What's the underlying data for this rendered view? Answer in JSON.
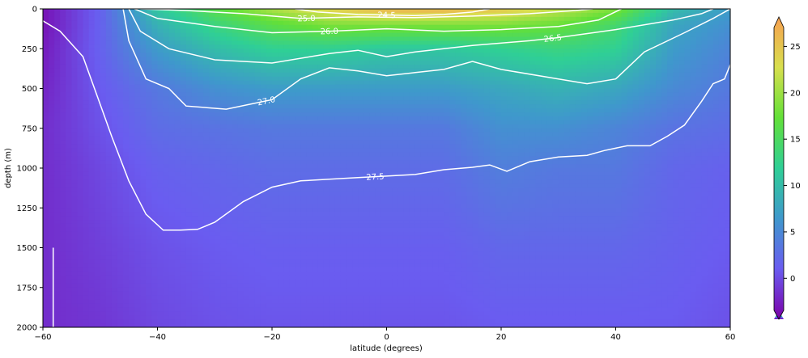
{
  "chart_data": {
    "type": "heatmap",
    "xlabel": "latitude (degrees)",
    "ylabel": "depth (m)",
    "xlim": [
      -60,
      60
    ],
    "ylim": [
      2000,
      0
    ],
    "xticks": [
      -60,
      -40,
      -20,
      0,
      20,
      40,
      60
    ],
    "yticks": [
      0,
      250,
      500,
      750,
      1000,
      1250,
      1500,
      1750,
      2000
    ],
    "colorbar": {
      "range": [
        -2.5,
        28
      ],
      "ticks": [
        0,
        5,
        10,
        15,
        20,
        25
      ],
      "colormap_stops": [
        "#7b00a8",
        "#6a5cf0",
        "#3f98cc",
        "#2fcf96",
        "#63e038",
        "#d8df4e",
        "#f7a050"
      ]
    },
    "field_estimate": {
      "lat": [
        -60,
        -50,
        -40,
        -30,
        -20,
        -10,
        0,
        10,
        20,
        30,
        40,
        50,
        60
      ],
      "depth": [
        0,
        100,
        250,
        500,
        750,
        1000,
        1500,
        2000
      ],
      "value_columns": [
        [
          -1.5,
          -1.5,
          -1.0,
          -0.5,
          0.0,
          0.0,
          0.0,
          0.0
        ],
        [
          3.0,
          3.0,
          3.0,
          2.5,
          2.0,
          1.5,
          1.0,
          0.5
        ],
        [
          12.0,
          10.0,
          8.0,
          5.0,
          4.0,
          3.0,
          2.0,
          1.5
        ],
        [
          17.0,
          14.0,
          11.0,
          7.0,
          4.5,
          3.5,
          2.5,
          2.0
        ],
        [
          21.0,
          17.0,
          13.0,
          8.0,
          5.0,
          4.0,
          2.8,
          2.2
        ],
        [
          24.0,
          19.0,
          13.0,
          8.0,
          5.0,
          4.0,
          2.8,
          2.2
        ],
        [
          26.5,
          19.0,
          12.0,
          8.0,
          5.0,
          4.0,
          2.8,
          2.2
        ],
        [
          26.5,
          19.0,
          12.0,
          8.0,
          5.0,
          4.0,
          2.8,
          2.2
        ],
        [
          25.0,
          19.0,
          13.0,
          9.0,
          7.0,
          5.5,
          3.5,
          2.5
        ],
        [
          22.0,
          18.0,
          14.0,
          10.0,
          7.0,
          5.0,
          3.5,
          2.5
        ],
        [
          19.0,
          15.0,
          13.0,
          9.0,
          6.0,
          5.0,
          3.5,
          2.5
        ],
        [
          11.0,
          9.0,
          8.0,
          6.5,
          4.5,
          3.5,
          3.0,
          2.5
        ],
        [
          8.0,
          7.0,
          6.0,
          5.0,
          4.0,
          3.0,
          2.5,
          2.0
        ]
      ]
    },
    "contours": [
      {
        "label": "24.5",
        "label_lat": 0,
        "points": [
          [
            -16,
            0
          ],
          [
            -12,
            20
          ],
          [
            -5,
            35
          ],
          [
            0,
            38
          ],
          [
            5,
            42
          ],
          [
            10,
            35
          ],
          [
            15,
            20
          ],
          [
            18,
            0
          ]
        ]
      },
      {
        "label": "25.0",
        "label_lat": -14,
        "points": [
          [
            -43,
            0
          ],
          [
            -35,
            10
          ],
          [
            -25,
            30
          ],
          [
            -15,
            60
          ],
          [
            -5,
            50
          ],
          [
            5,
            55
          ],
          [
            15,
            45
          ],
          [
            25,
            30
          ],
          [
            33,
            10
          ],
          [
            36,
            0
          ]
        ]
      },
      {
        "label": "26.0",
        "label_lat": -10,
        "points": [
          [
            -44,
            0
          ],
          [
            -40,
            60
          ],
          [
            -30,
            110
          ],
          [
            -20,
            150
          ],
          [
            -10,
            140
          ],
          [
            0,
            125
          ],
          [
            10,
            140
          ],
          [
            20,
            130
          ],
          [
            30,
            110
          ],
          [
            37,
            70
          ],
          [
            41,
            0
          ]
        ]
      },
      {
        "label": "26.5",
        "label_lat": 29,
        "points": [
          [
            -45,
            0
          ],
          [
            -43,
            140
          ],
          [
            -38,
            250
          ],
          [
            -30,
            320
          ],
          [
            -20,
            340
          ],
          [
            -10,
            280
          ],
          [
            -5,
            260
          ],
          [
            0,
            300
          ],
          [
            5,
            270
          ],
          [
            15,
            230
          ],
          [
            25,
            200
          ],
          [
            30,
            180
          ],
          [
            40,
            130
          ],
          [
            50,
            70
          ],
          [
            55,
            30
          ],
          [
            57,
            0
          ]
        ]
      },
      {
        "label": "27.0",
        "label_lat": -21,
        "points": [
          [
            -46,
            0
          ],
          [
            -45,
            200
          ],
          [
            -42,
            440
          ],
          [
            -38,
            500
          ],
          [
            -35,
            610
          ],
          [
            -28,
            630
          ],
          [
            -20,
            570
          ],
          [
            -15,
            440
          ],
          [
            -10,
            370
          ],
          [
            -5,
            390
          ],
          [
            0,
            420
          ],
          [
            5,
            400
          ],
          [
            10,
            380
          ],
          [
            15,
            330
          ],
          [
            20,
            380
          ],
          [
            30,
            440
          ],
          [
            35,
            470
          ],
          [
            40,
            440
          ],
          [
            45,
            270
          ],
          [
            52,
            150
          ],
          [
            57,
            60
          ],
          [
            60,
            0
          ]
        ]
      },
      {
        "label": "27.5",
        "label_lat": -2,
        "points": [
          [
            -60,
            75
          ],
          [
            -57,
            140
          ],
          [
            -53,
            300
          ],
          [
            -50,
            600
          ],
          [
            -48,
            800
          ],
          [
            -45,
            1080
          ],
          [
            -42,
            1290
          ],
          [
            -39,
            1390
          ],
          [
            -36,
            1390
          ],
          [
            -33,
            1385
          ],
          [
            -30,
            1340
          ],
          [
            -25,
            1210
          ],
          [
            -20,
            1120
          ],
          [
            -15,
            1080
          ],
          [
            -10,
            1070
          ],
          [
            -5,
            1060
          ],
          [
            0,
            1050
          ],
          [
            5,
            1040
          ],
          [
            10,
            1010
          ],
          [
            15,
            995
          ],
          [
            18,
            980
          ],
          [
            21,
            1020
          ],
          [
            25,
            960
          ],
          [
            30,
            930
          ],
          [
            35,
            920
          ],
          [
            38,
            890
          ],
          [
            42,
            860
          ],
          [
            46,
            860
          ],
          [
            49,
            800
          ],
          [
            52,
            730
          ],
          [
            55,
            580
          ],
          [
            57,
            470
          ],
          [
            59,
            440
          ],
          [
            60,
            350
          ]
        ]
      },
      {
        "label": "",
        "label_lat": null,
        "points": [
          [
            -58.2,
            1500
          ],
          [
            -58.2,
            2000
          ]
        ]
      }
    ]
  }
}
